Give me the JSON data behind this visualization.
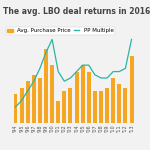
{
  "title": "The avg. LBO deal returns in 2016",
  "categories": [
    "'94",
    "'95",
    "'96",
    "'97",
    "'98",
    "'99",
    "'00",
    "'01",
    "'02",
    "'03",
    "'04",
    "'05",
    "'06",
    "'07",
    "'08",
    "'09",
    "'10",
    "'11",
    "'12",
    "'13"
  ],
  "bar_values": [
    4.5,
    5.5,
    6.5,
    7.5,
    7.0,
    11.5,
    9.0,
    3.5,
    5.0,
    5.5,
    8.0,
    9.0,
    8.0,
    5.0,
    5.0,
    5.5,
    7.0,
    6.0,
    5.5,
    10.5
  ],
  "line_values": [
    2.5,
    3.5,
    5.0,
    6.5,
    8.5,
    11.0,
    13.0,
    8.0,
    6.5,
    7.0,
    8.0,
    9.0,
    9.0,
    7.5,
    7.0,
    7.0,
    8.0,
    8.0,
    8.5,
    13.0
  ],
  "bar_color": "#f5a623",
  "line_color": "#2ab5a5",
  "background_color": "#f2f2f2",
  "title_color": "#444444",
  "grid_color": "#dddddd",
  "legend_bar_label": "Avg. Purchase Price",
  "legend_line_label": "PP Multiple",
  "title_fontsize": 5.5,
  "legend_fontsize": 4.0,
  "tick_fontsize": 3.5
}
